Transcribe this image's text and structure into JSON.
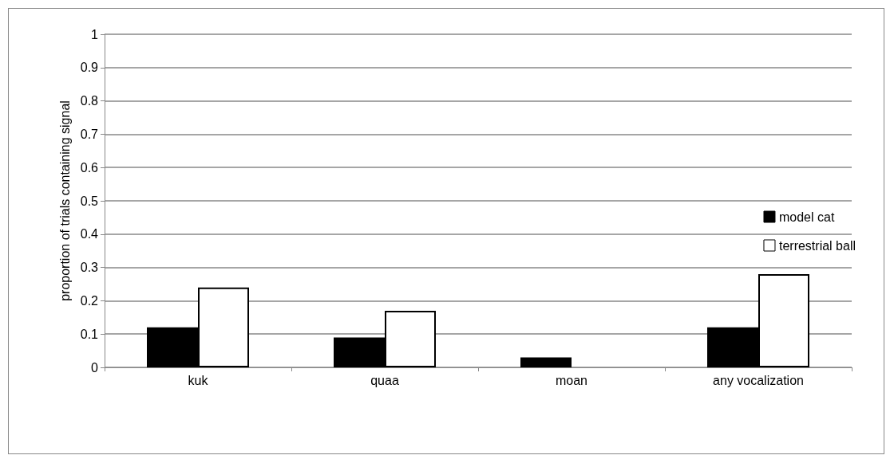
{
  "chart_data": {
    "type": "bar",
    "ylabel": "proportion of trials containing signal",
    "categories": [
      "kuk",
      "quaa",
      "moan",
      "any vocalization"
    ],
    "series": [
      {
        "name": "model cat",
        "color": "#000000",
        "values": [
          0.12,
          0.09,
          0.03,
          0.12
        ]
      },
      {
        "name": "terrestrial ball",
        "color": "#ffffff",
        "values": [
          0.24,
          0.17,
          null,
          0.28
        ]
      }
    ],
    "ylim": [
      0,
      1
    ],
    "yticks": [
      0,
      0.1,
      0.2,
      0.3,
      0.4,
      0.5,
      0.6,
      0.7,
      0.8,
      0.9,
      1
    ],
    "grid": "y",
    "legend": "right"
  }
}
